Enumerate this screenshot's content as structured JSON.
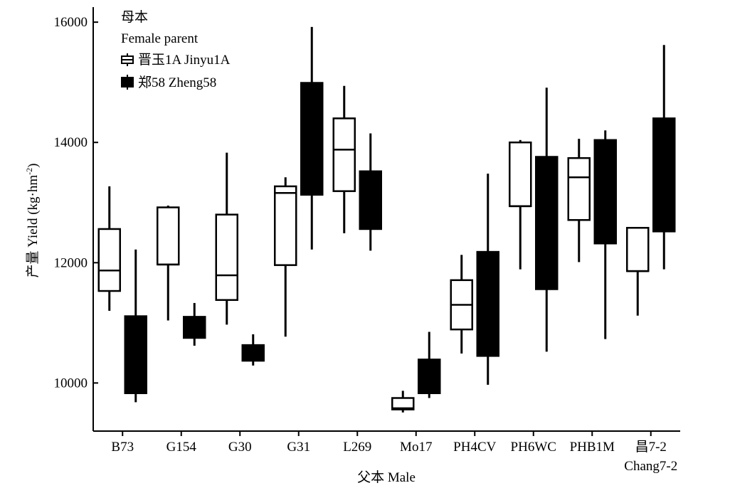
{
  "chart_data": {
    "type": "boxplot",
    "xlabel": "父本 Male",
    "ylabel_cn": "产量 Yield (kg·hm",
    "ylabel_sup": "-2",
    "ylabel_close": ")",
    "ylim": [
      9200,
      16250
    ],
    "yticks": [
      10000,
      12000,
      14000,
      16000
    ],
    "legend": {
      "title_cn": "母本",
      "title_en": "Female parent",
      "position": "top-left"
    },
    "categories": [
      {
        "label": "B73",
        "label2": ""
      },
      {
        "label": "G154",
        "label2": ""
      },
      {
        "label": "G30",
        "label2": ""
      },
      {
        "label": "G31",
        "label2": ""
      },
      {
        "label": "L269",
        "label2": ""
      },
      {
        "label": "Mo17",
        "label2": ""
      },
      {
        "label": "PH4CV",
        "label2": ""
      },
      {
        "label": "PH6WC",
        "label2": ""
      },
      {
        "label": "PHB1M",
        "label2": ""
      },
      {
        "label": "昌7-2",
        "label2": "Chang7-2"
      }
    ],
    "series": [
      {
        "name": "晋玉1A Jinyu1A",
        "fill": "#ffffff",
        "stroke": "#000000",
        "boxes": [
          {
            "min": 11200,
            "q1": 11530,
            "median": 11870,
            "q3": 12560,
            "max": 13270
          },
          {
            "min": 11040,
            "q1": 11970,
            "median": 11970,
            "q3": 12920,
            "max": 12950
          },
          {
            "min": 10970,
            "q1": 11380,
            "median": 11790,
            "q3": 12800,
            "max": 13830
          },
          {
            "min": 10770,
            "q1": 11960,
            "median": 13160,
            "q3": 13270,
            "max": 13420
          },
          {
            "min": 12490,
            "q1": 13190,
            "median": 13880,
            "q3": 14400,
            "max": 14940
          },
          {
            "min": 9510,
            "q1": 9560,
            "median": 9580,
            "q3": 9750,
            "max": 9870
          },
          {
            "min": 10490,
            "q1": 10890,
            "median": 11300,
            "q3": 11710,
            "max": 12130
          },
          {
            "min": 11890,
            "q1": 12940,
            "median": 12940,
            "q3": 14000,
            "max": 14040
          },
          {
            "min": 12010,
            "q1": 12710,
            "median": 13420,
            "q3": 13740,
            "max": 14060
          },
          {
            "min": 11120,
            "q1": 11860,
            "median": 11860,
            "q3": 12580,
            "max": 12580
          }
        ]
      },
      {
        "name": "郑58 Zheng58",
        "fill": "#000000",
        "stroke": "#000000",
        "boxes": [
          {
            "min": 9680,
            "q1": 9830,
            "median": 10470,
            "q3": 11110,
            "max": 12220
          },
          {
            "min": 10620,
            "q1": 10750,
            "median": 10930,
            "q3": 11100,
            "max": 11330
          },
          {
            "min": 10290,
            "q1": 10370,
            "median": 10500,
            "q3": 10630,
            "max": 10810
          },
          {
            "min": 12220,
            "q1": 13130,
            "median": 14060,
            "q3": 14990,
            "max": 15920
          },
          {
            "min": 12200,
            "q1": 12560,
            "median": 13040,
            "q3": 13520,
            "max": 14150
          },
          {
            "min": 9750,
            "q1": 9830,
            "median": 10110,
            "q3": 10390,
            "max": 10850
          },
          {
            "min": 9970,
            "q1": 10450,
            "median": 11320,
            "q3": 12180,
            "max": 13480
          },
          {
            "min": 10520,
            "q1": 11560,
            "median": 12660,
            "q3": 13760,
            "max": 14910
          },
          {
            "min": 10730,
            "q1": 12320,
            "median": 13180,
            "q3": 14040,
            "max": 14200
          },
          {
            "min": 11890,
            "q1": 12520,
            "median": 13460,
            "q3": 14400,
            "max": 15620
          }
        ]
      }
    ]
  }
}
